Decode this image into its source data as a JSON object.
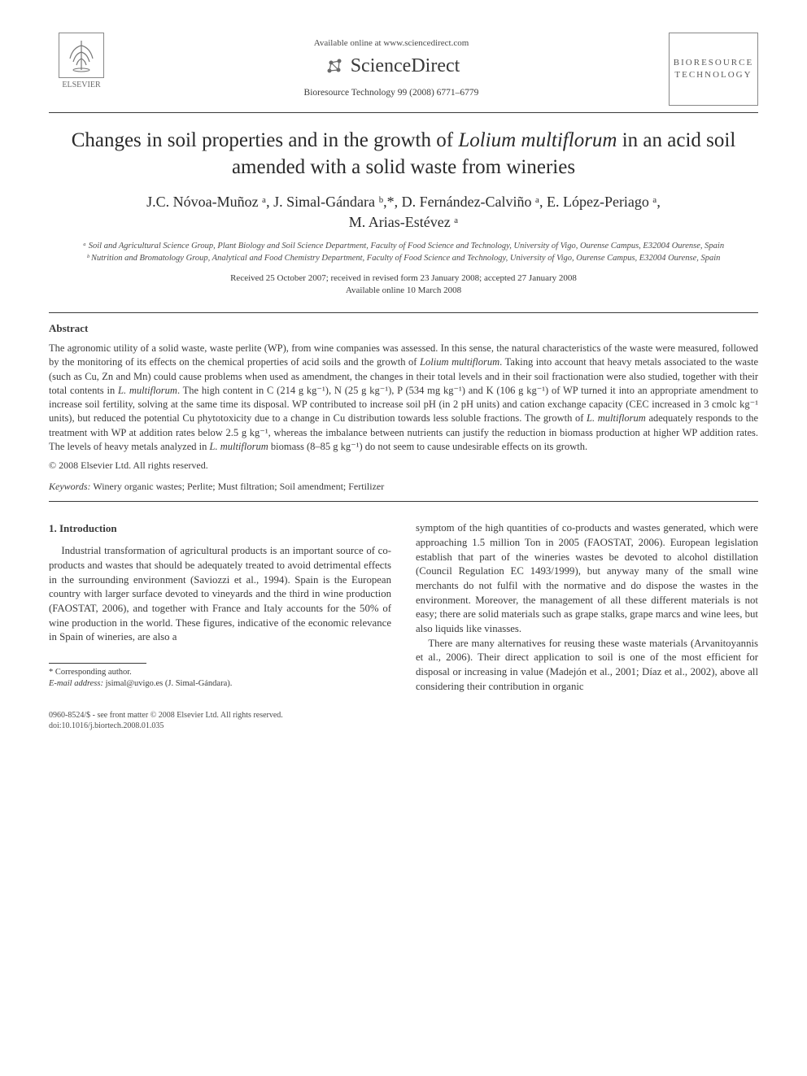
{
  "header": {
    "elsevier_label": "ELSEVIER",
    "available_online": "Available online at www.sciencedirect.com",
    "sciencedirect": "ScienceDirect",
    "journal_ref": "Bioresource Technology 99 (2008) 6771–6779",
    "cover_line1": "BIORESOURCE",
    "cover_line2": "TECHNOLOGY"
  },
  "title_part1": "Changes in soil properties and in the growth of ",
  "title_ital": "Lolium multiflorum",
  "title_part2": " in an acid soil amended with a solid waste from wineries",
  "authors_line1": "J.C. Nóvoa-Muñoz ᵃ, J. Simal-Gándara ᵇ,*, D. Fernández-Calviño ᵃ, E. López-Periago ᵃ,",
  "authors_line2": "M. Arias-Estévez ᵃ",
  "affiliations": {
    "a": "ᵃ Soil and Agricultural Science Group, Plant Biology and Soil Science Department, Faculty of Food Science and Technology, University of Vigo, Ourense Campus, E32004 Ourense, Spain",
    "b": "ᵇ Nutrition and Bromatology Group, Analytical and Food Chemistry Department, Faculty of Food Science and Technology, University of Vigo, Ourense Campus, E32004 Ourense, Spain"
  },
  "dates": {
    "received": "Received 25 October 2007; received in revised form 23 January 2008; accepted 27 January 2008",
    "available": "Available online 10 March 2008"
  },
  "abstract": {
    "heading": "Abstract",
    "body": "The agronomic utility of a solid waste, waste perlite (WP), from wine companies was assessed. In this sense, the natural characteristics of the waste were measured, followed by the monitoring of its effects on the chemical properties of acid soils and the growth of <i>Lolium multiflorum</i>. Taking into account that heavy metals associated to the waste (such as Cu, Zn and Mn) could cause problems when used as amendment, the changes in their total levels and in their soil fractionation were also studied, together with their total contents in <i>L. multiflorum</i>. The high content in C (214 g kg⁻¹), N (25 g kg⁻¹), P (534 mg kg⁻¹) and K (106 g kg⁻¹) of WP turned it into an appropriate amendment to increase soil fertility, solving at the same time its disposal. WP contributed to increase soil pH (in 2 pH units) and cation exchange capacity (CEC increased in 3 cmolc kg⁻¹ units), but reduced the potential Cu phytotoxicity due to a change in Cu distribution towards less soluble fractions. The growth of <i>L. multiflorum</i> adequately responds to the treatment with WP at addition rates below 2.5 g kg⁻¹, whereas the imbalance between nutrients can justify the reduction in biomass production at higher WP addition rates. The levels of heavy metals analyzed in <i>L. multiflorum</i> biomass (8–85 g kg⁻¹) do not seem to cause undesirable effects on its growth.",
    "copyright": "© 2008 Elsevier Ltd. All rights reserved."
  },
  "keywords": {
    "label": "Keywords:",
    "text": " Winery organic wastes; Perlite; Must filtration; Soil amendment; Fertilizer"
  },
  "intro": {
    "heading": "1. Introduction",
    "p1": "Industrial transformation of agricultural products is an important source of co-products and wastes that should be adequately treated to avoid detrimental effects in the surrounding environment (Saviozzi et al., 1994). Spain is the European country with larger surface devoted to vineyards and the third in wine production (FAOSTAT, 2006), and together with France and Italy accounts for the 50% of wine production in the world. These figures, indicative of the economic relevance in Spain of wineries, are also a",
    "p2": "symptom of the high quantities of co-products and wastes generated, which were approaching 1.5 million Ton in 2005 (FAOSTAT, 2006). European legislation establish that part of the wineries wastes be devoted to alcohol distillation (Council Regulation EC 1493/1999), but anyway many of the small wine merchants do not fulfil with the normative and do dispose the wastes in the environment. Moreover, the management of all these different materials is not easy; there are solid materials such as grape stalks, grape marcs and wine lees, but also liquids like vinasses.",
    "p3": "There are many alternatives for reusing these waste materials (Arvanitoyannis et al., 2006). Their direct application to soil is one of the most efficient for disposal or increasing in value (Madejón et al., 2001; Díaz et al., 2002), above all considering their contribution in organic"
  },
  "footnote": {
    "corresponding": "* Corresponding author.",
    "email_label": "E-mail address:",
    "email": "jsimal@uvigo.es",
    "email_paren": " (J. Simal-Gándara)."
  },
  "footer": {
    "issn": "0960-8524/$ - see front matter © 2008 Elsevier Ltd. All rights reserved.",
    "doi": "doi:10.1016/j.biortech.2008.01.035"
  },
  "colors": {
    "text": "#3a3a3a",
    "bg": "#ffffff",
    "rule": "#3a3a3a",
    "muted": "#6a6a6a"
  }
}
